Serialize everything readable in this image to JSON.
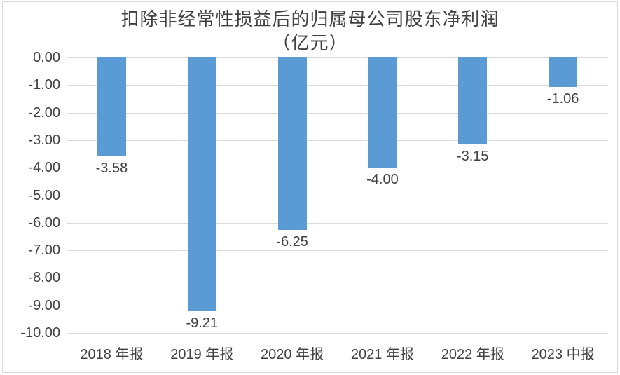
{
  "chart": {
    "title": "扣除非经常性损益后的归属母公司股东净利润",
    "subtitle": "（亿元）"
  },
  "chart_data": {
    "type": "bar",
    "title": "扣除非经常性损益后的归属母公司股东净利润（亿元）",
    "categories": [
      "2018 年报",
      "2019 年报",
      "2020 年报",
      "2021 年报",
      "2022 年报",
      "2023 中报"
    ],
    "values": [
      -3.58,
      -9.21,
      -6.25,
      -4.0,
      -3.15,
      -1.06
    ],
    "data_labels": [
      "-3.58",
      "-9.21",
      "-6.25",
      "-4.00",
      "-3.15",
      "-1.06"
    ],
    "yticks": [
      0,
      -1,
      -2,
      -3,
      -4,
      -5,
      -6,
      -7,
      -8,
      -9,
      -10
    ],
    "ytick_labels": [
      "0.00",
      "-1.00",
      "-2.00",
      "-3.00",
      "-4.00",
      "-5.00",
      "-6.00",
      "-7.00",
      "-8.00",
      "-9.00",
      "-10.00"
    ],
    "ylim": [
      -10,
      0
    ],
    "xlabel": "",
    "ylabel": "",
    "grid": true,
    "legend": false,
    "bar_color": "#5b9bd5",
    "gridline_color": "#d9d9d9",
    "text_color": "#404040",
    "background_color": "#ffffff",
    "border_color": "#d9d9d9"
  }
}
